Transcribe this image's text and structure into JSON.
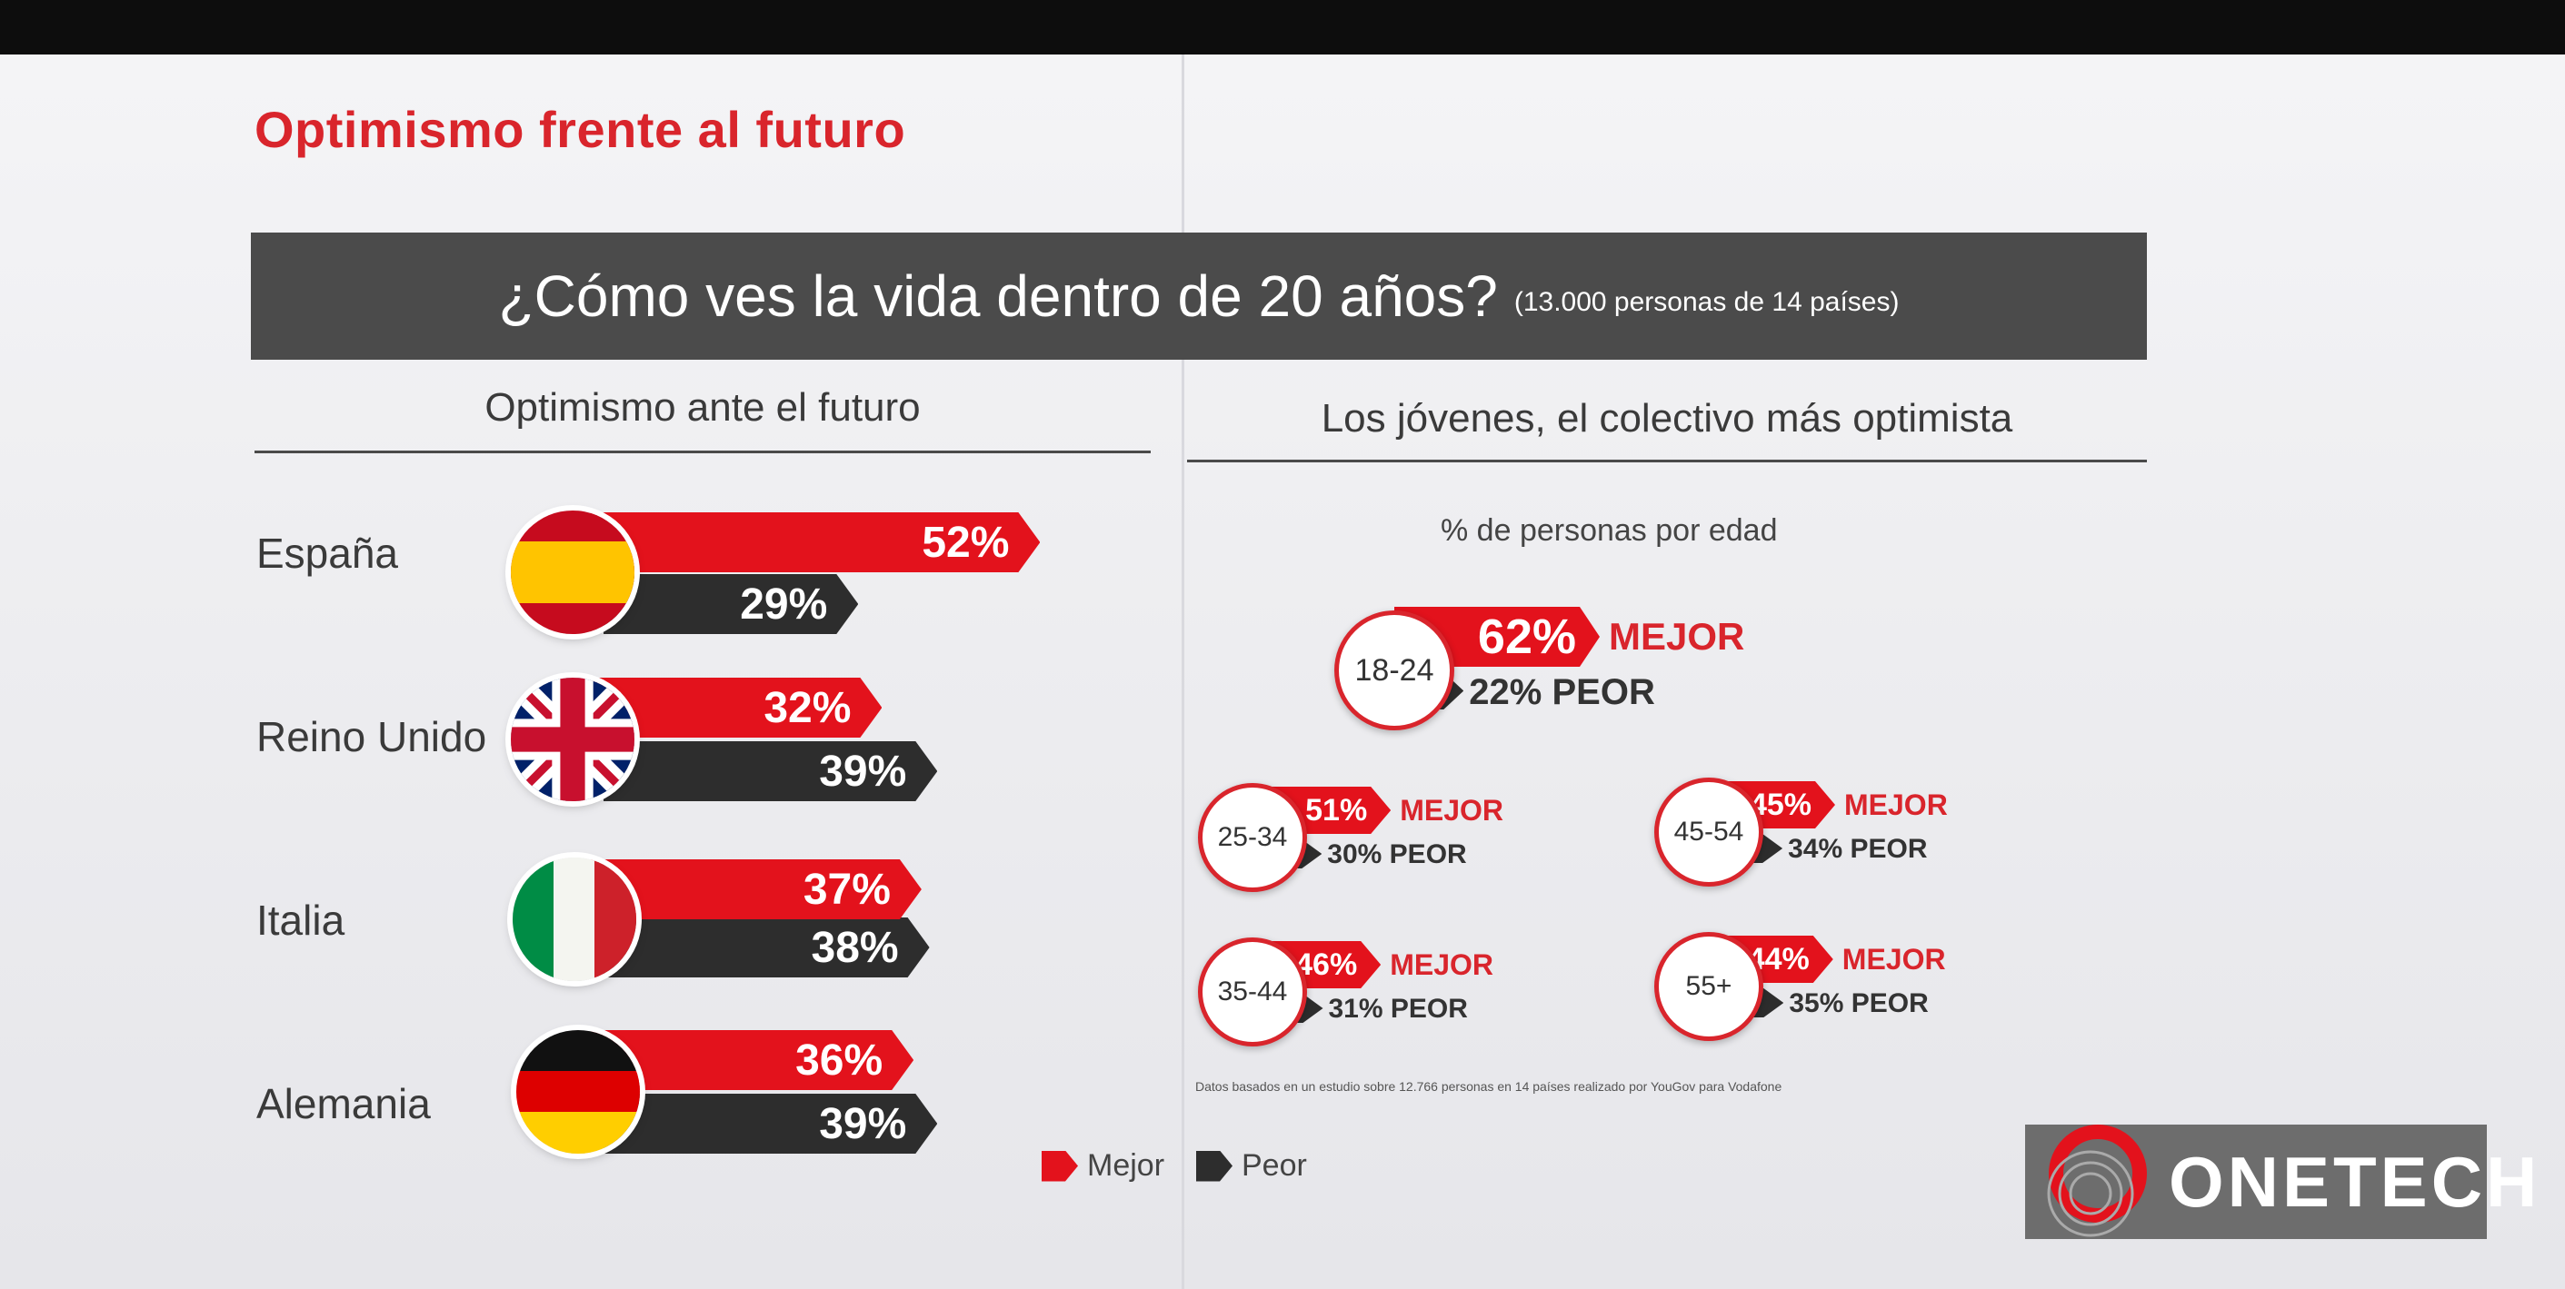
{
  "page_title": "Optimismo frente al futuro",
  "banner": {
    "question": "¿Cómo ves la vida dentro de 20 años?",
    "subtitle": "(13.000 personas de 14 países)"
  },
  "left_section": {
    "heading": "Optimismo ante el futuro",
    "legend": {
      "better": "Mejor",
      "worse": "Peor"
    }
  },
  "right_section": {
    "heading": "Los jóvenes, el colectivo más optimista",
    "subheading": "% de personas por edad",
    "footnote": "Datos basados en un estudio sobre 12.766 personas en 14 países realizado por YouGov para Vodafone"
  },
  "colors": {
    "accent_red": "#e3121c",
    "dark": "#2d2d2d",
    "banner": "#4b4b4b"
  },
  "watermark": {
    "text": "ONETECH"
  },
  "chart_data": [
    {
      "type": "bar",
      "categories": [
        "España",
        "Reino Unido",
        "Italia",
        "Alemania"
      ],
      "series": [
        {
          "name": "Mejor",
          "values": [
            52,
            32,
            37,
            36
          ],
          "labels": [
            "52%",
            "32%",
            "37%",
            "36%"
          ]
        },
        {
          "name": "Peor",
          "values": [
            29,
            39,
            38,
            39
          ],
          "labels": [
            "29%",
            "39%",
            "38%",
            "39%"
          ]
        }
      ],
      "flag_icons": [
        "spain-flag-icon",
        "uk-flag-icon",
        "italy-flag-icon",
        "germany-flag-icon"
      ]
    },
    {
      "type": "bar",
      "categories": [
        "18-24",
        "25-34",
        "35-44",
        "45-54",
        "55+"
      ],
      "series": [
        {
          "name": "MEJOR",
          "values": [
            62,
            51,
            46,
            45,
            44
          ],
          "labels": [
            "62%",
            "51%",
            "46%",
            "45%",
            "44%"
          ]
        },
        {
          "name": "PEOR",
          "values": [
            22,
            30,
            31,
            34,
            35
          ],
          "labels": [
            "22% PEOR",
            "30% PEOR",
            "31% PEOR",
            "34% PEOR",
            "35% PEOR"
          ]
        }
      ]
    }
  ]
}
